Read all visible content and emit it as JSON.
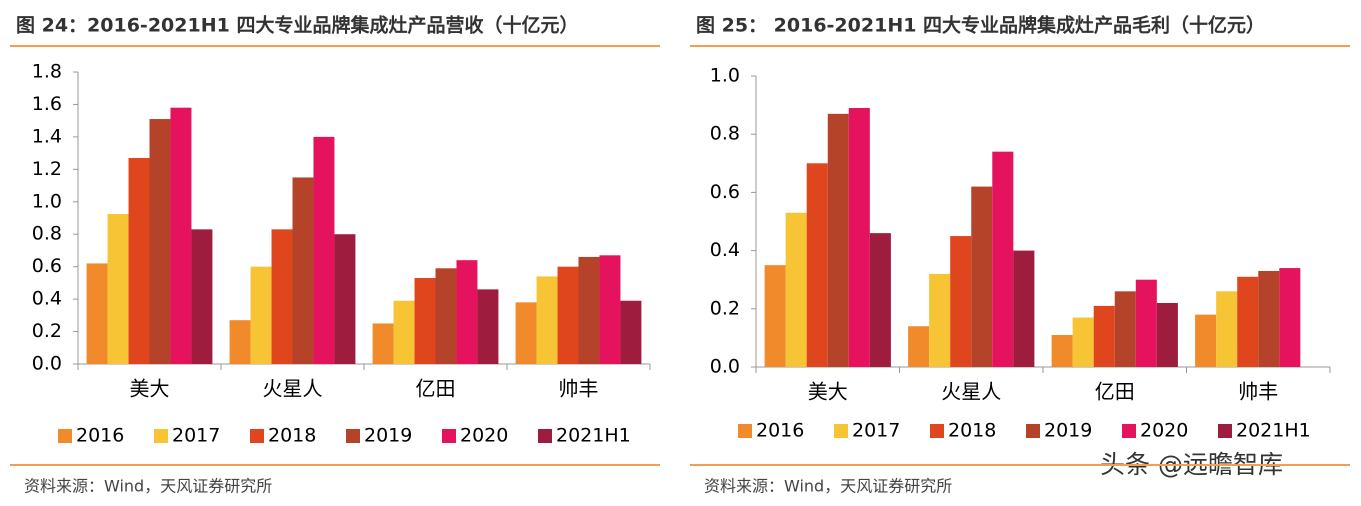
{
  "chart_data": [
    {
      "type": "bar",
      "title": "图 24：2016-2021H1 四大专业品牌集成灶产品营收（十亿元）",
      "source": "资料来源：Wind，天风证券研究所",
      "categories": [
        "美大",
        "火星人",
        "亿田",
        "帅丰"
      ],
      "series": [
        {
          "name": "2016",
          "color": "#f08a2a",
          "values": [
            0.62,
            0.27,
            0.25,
            0.38
          ]
        },
        {
          "name": "2017",
          "color": "#f7c435",
          "values": [
            0.925,
            0.6,
            0.39,
            0.54
          ]
        },
        {
          "name": "2018",
          "color": "#e0461e",
          "values": [
            1.27,
            0.83,
            0.53,
            0.6
          ]
        },
        {
          "name": "2019",
          "color": "#b5432a",
          "values": [
            1.51,
            1.15,
            0.59,
            0.66
          ]
        },
        {
          "name": "2020",
          "color": "#e5135e",
          "values": [
            1.58,
            1.4,
            0.64,
            0.67
          ]
        },
        {
          "name": "2021H1",
          "color": "#9e1d3f",
          "values": [
            0.83,
            0.8,
            0.46,
            0.39
          ]
        }
      ],
      "ylim": [
        0,
        1.8
      ],
      "yticks": [
        {
          "value": 0,
          "label": "0.0"
        },
        0.2,
        0.4,
        0.6,
        0.8,
        {
          "value": 1,
          "label": "1.0"
        },
        1.2,
        1.4,
        1.6,
        1.8
      ]
    },
    {
      "type": "bar",
      "title": "图 25： 2016-2021H1 四大专业品牌集成灶产品毛利（十亿元）",
      "source": "资料来源：Wind，天风证券研究所",
      "categories": [
        "美大",
        "火星人",
        "亿田",
        "帅丰"
      ],
      "series": [
        {
          "name": "2016",
          "color": "#f08a2a",
          "values": [
            0.35,
            0.14,
            0.11,
            0.18
          ]
        },
        {
          "name": "2017",
          "color": "#f7c435",
          "values": [
            0.53,
            0.32,
            0.17,
            0.26
          ]
        },
        {
          "name": "2018",
          "color": "#e0461e",
          "values": [
            0.7,
            0.45,
            0.21,
            0.31
          ]
        },
        {
          "name": "2019",
          "color": "#b5432a",
          "values": [
            0.87,
            0.62,
            0.26,
            0.33
          ]
        },
        {
          "name": "2020",
          "color": "#e5135e",
          "values": [
            0.89,
            0.74,
            0.3,
            0.34
          ]
        },
        {
          "name": "2021H1",
          "color": "#9e1d3f",
          "values": [
            0.46,
            0.4,
            0.22,
            null
          ]
        }
      ],
      "ylim": [
        0,
        1
      ],
      "yticks": [
        {
          "value": 0,
          "label": "0.0"
        },
        0.2,
        0.4,
        0.6,
        0.8,
        {
          "value": 1,
          "label": "1.0"
        }
      ]
    }
  ],
  "watermark": "头条 @远瞻智库"
}
